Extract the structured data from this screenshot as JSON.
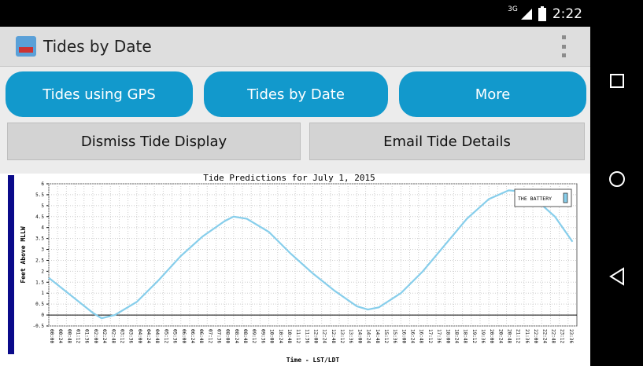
{
  "status_bar": {
    "network": "3G",
    "time": "2:22"
  },
  "action_bar": {
    "title": "Tides by Date"
  },
  "buttons": {
    "tides_gps": "Tides using GPS",
    "tides_date": "Tides by Date",
    "more": "More",
    "dismiss": "Dismiss Tide Display",
    "email": "Email Tide Details"
  },
  "chart_data": {
    "type": "line",
    "title": "Tide Predictions for July  1, 2015",
    "xlabel": "Time - LST/LDT",
    "ylabel": "Feet Above MLLW",
    "legend": "THE BATTERY",
    "legend_position": "top-right",
    "ylim": [
      -0.5,
      6
    ],
    "yticks": [
      "-0.5",
      "0",
      "0.5",
      "1",
      "1.5",
      "2",
      "2.5",
      "3",
      "3.5",
      "4",
      "4.5",
      "5",
      "5.5",
      "6"
    ],
    "xticks": [
      "00:00",
      "00:24",
      "00:48",
      "01:12",
      "01:36",
      "02:00",
      "02:24",
      "02:48",
      "03:12",
      "03:36",
      "04:00",
      "04:24",
      "04:48",
      "05:12",
      "05:36",
      "06:00",
      "06:24",
      "06:48",
      "07:12",
      "07:36",
      "08:00",
      "08:24",
      "08:48",
      "09:12",
      "09:36",
      "10:00",
      "10:24",
      "10:48",
      "11:12",
      "11:36",
      "12:00",
      "12:24",
      "12:48",
      "13:12",
      "13:36",
      "14:00",
      "14:24",
      "14:48",
      "15:12",
      "15:36",
      "16:00",
      "16:24",
      "16:48",
      "17:12",
      "17:36",
      "18:00",
      "18:24",
      "18:48",
      "19:12",
      "19:36",
      "20:00",
      "20:24",
      "20:48",
      "21:12",
      "21:36",
      "22:00",
      "22:24",
      "22:48",
      "23:12",
      "23:36"
    ],
    "grid": true,
    "series": [
      {
        "name": "THE BATTERY",
        "color": "#87ceeb",
        "x": [
          0,
          1,
          2,
          2.4,
          3,
          4,
          5,
          6,
          7,
          8,
          8.4,
          9,
          10,
          11,
          12,
          13,
          14,
          14.5,
          15,
          16,
          17,
          18,
          19,
          20,
          20.9,
          21.5,
          22,
          23,
          23.8
        ],
        "y": [
          1.7,
          0.9,
          0.1,
          -0.15,
          0.0,
          0.6,
          1.6,
          2.7,
          3.6,
          4.3,
          4.5,
          4.4,
          3.8,
          2.8,
          1.9,
          1.1,
          0.4,
          0.25,
          0.35,
          1.0,
          2.0,
          3.2,
          4.4,
          5.3,
          5.7,
          5.65,
          5.4,
          4.5,
          3.35
        ]
      }
    ]
  }
}
